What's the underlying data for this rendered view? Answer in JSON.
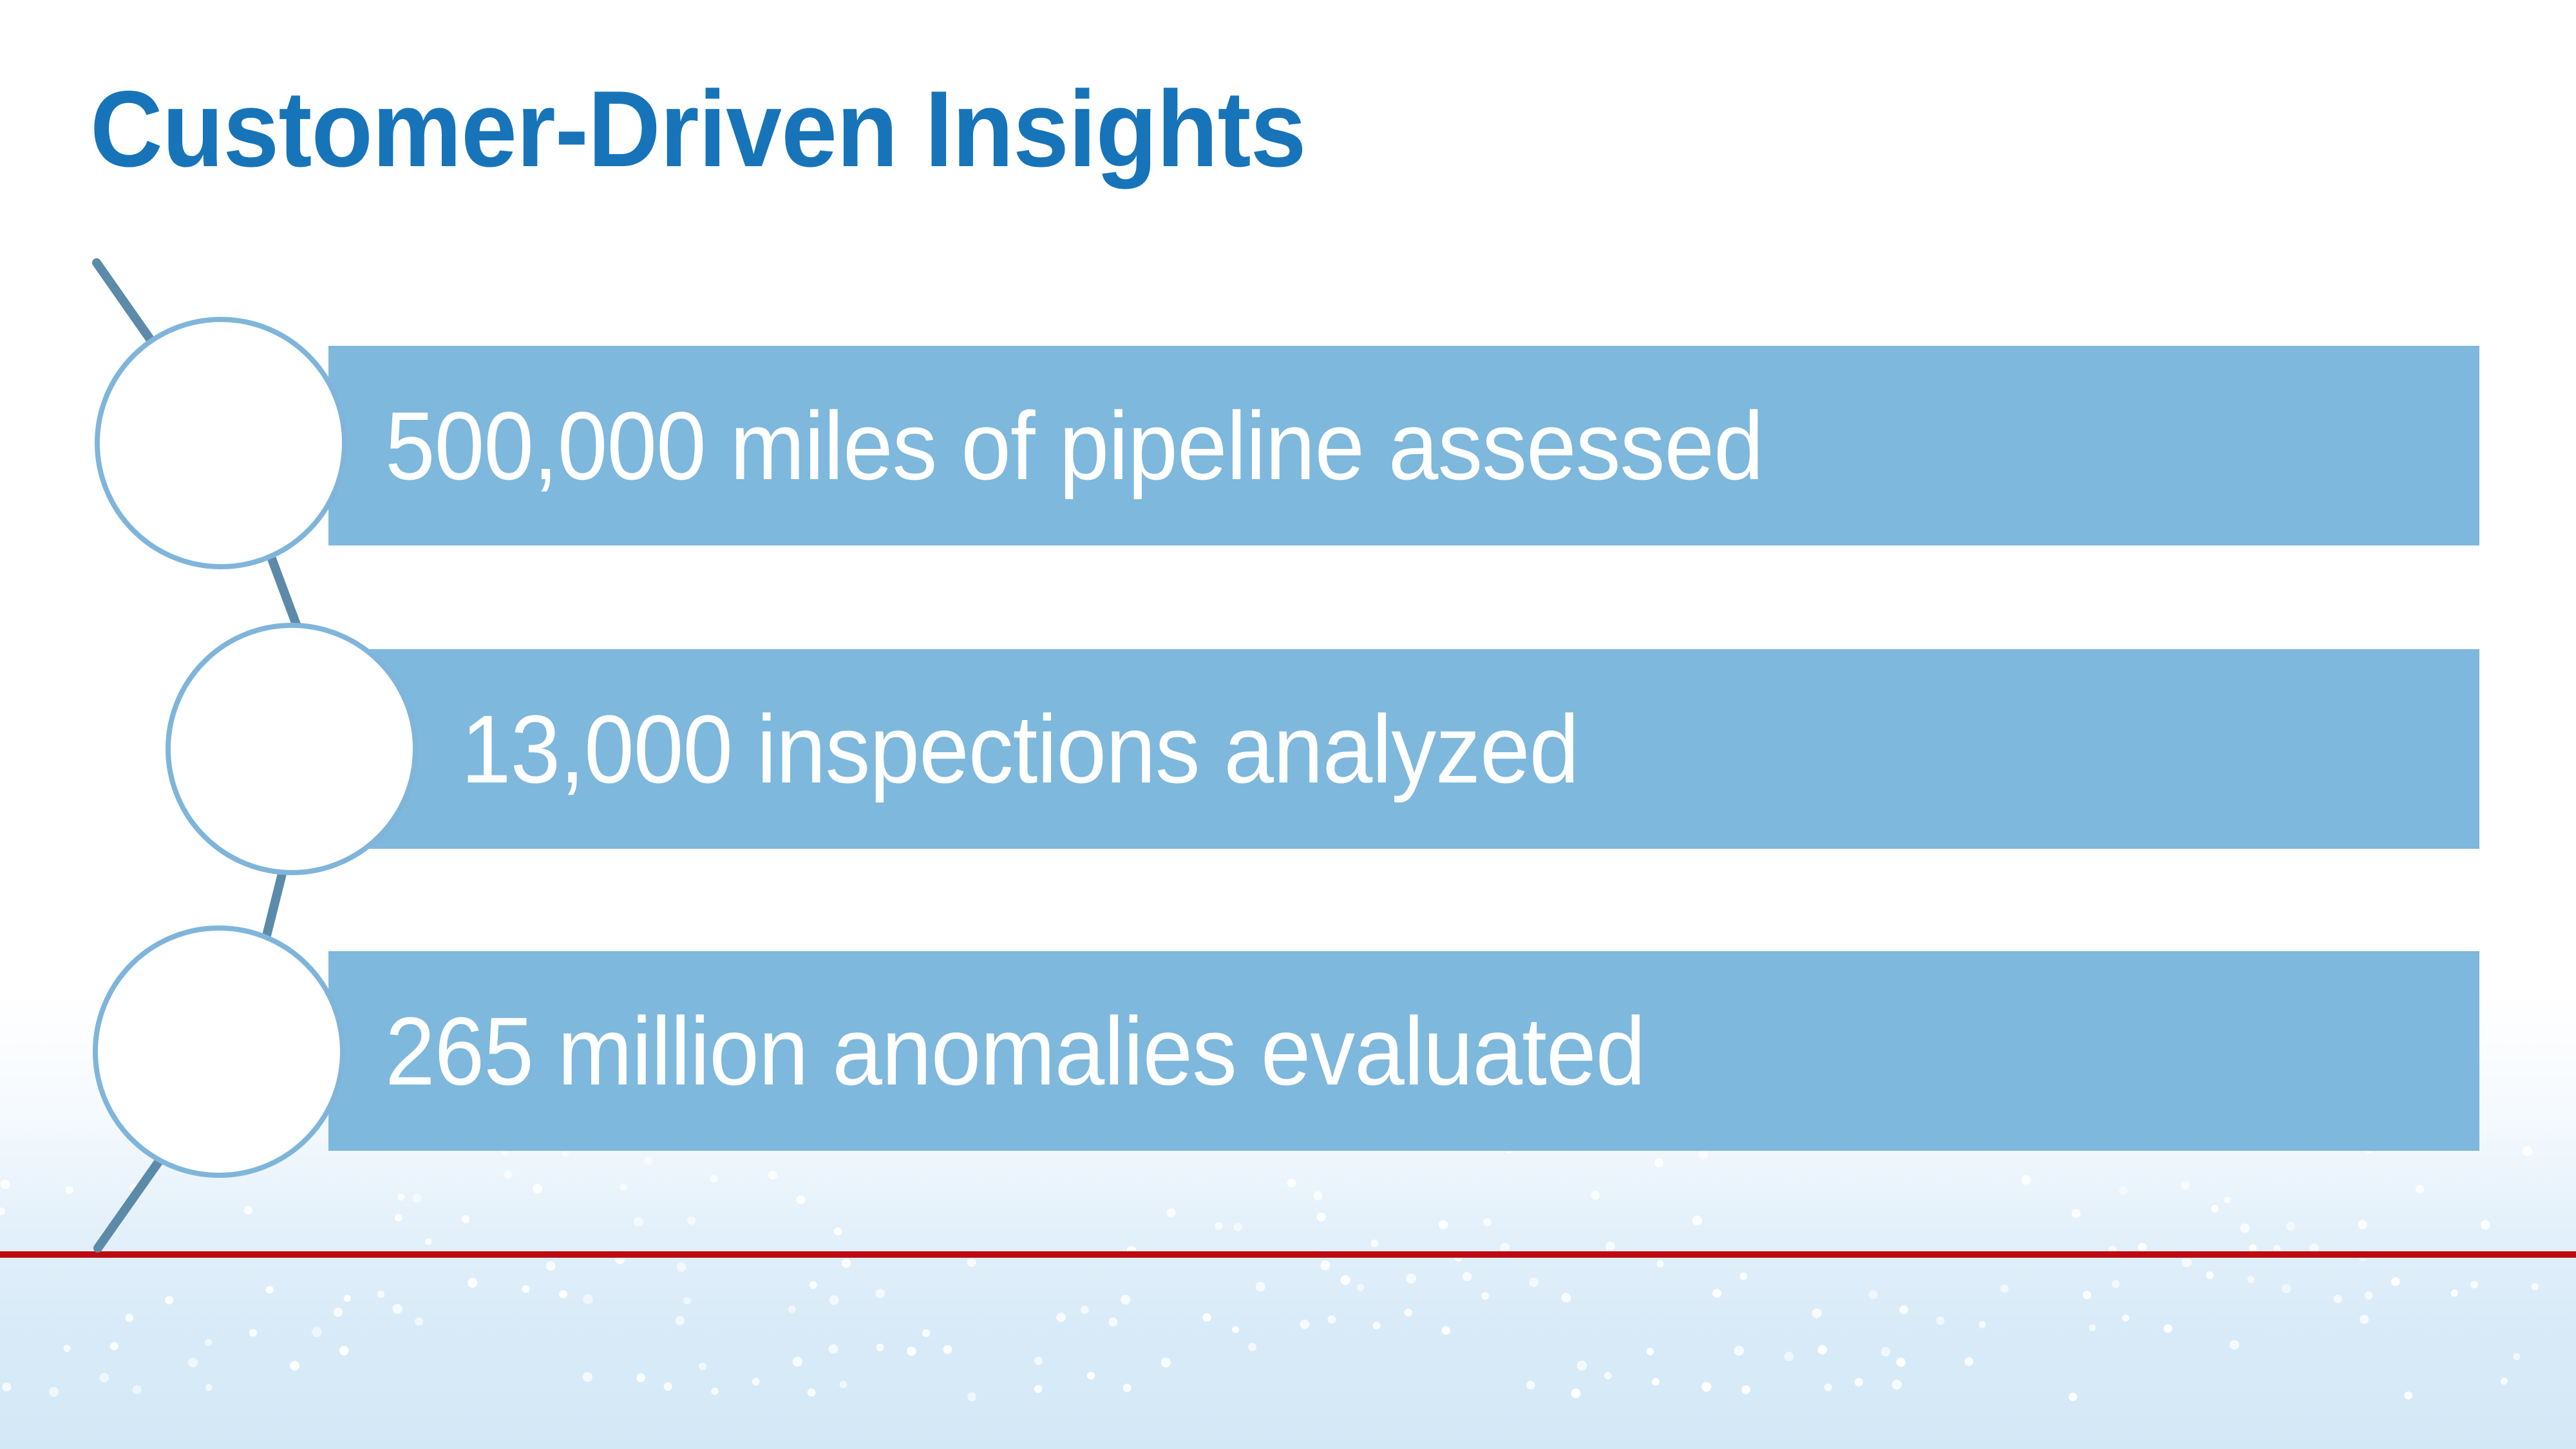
{
  "slide": {
    "title": "Customer-Driven Insights",
    "diagram": {
      "items": [
        {
          "label": "500,000 miles of pipeline assessed"
        },
        {
          "label": "13,000 inspections analyzed"
        },
        {
          "label": "265 million anomalies evaluated"
        }
      ]
    },
    "colors": {
      "title_text": "#1774B9",
      "bar_fill": "#7EB8DC",
      "bar_text": "#FFFFFF",
      "circle_fill": "#FFFFFF",
      "circle_border": "#7FB5DA",
      "connector_line": "#5C8AA9",
      "accent_rule": "#BF0A12",
      "footer_tint": "#D3E8F6"
    }
  }
}
